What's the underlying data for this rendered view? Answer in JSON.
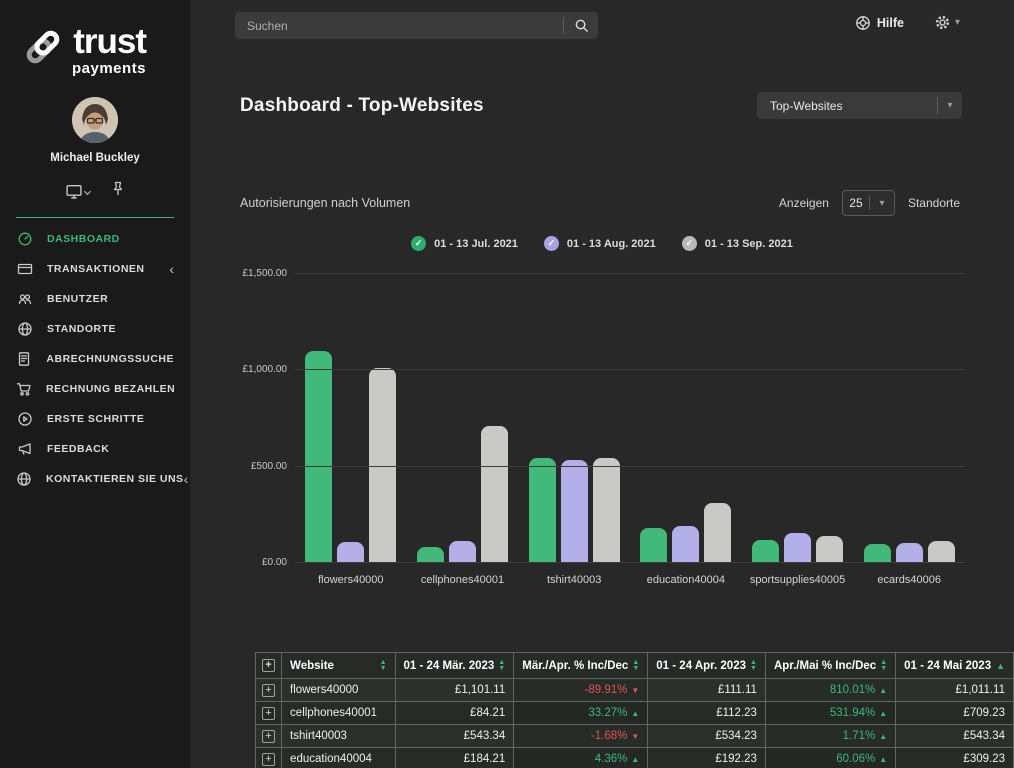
{
  "sidebar": {
    "logo_line1": "trust",
    "logo_line2": "payments",
    "user_name": "Michael Buckley",
    "items": [
      {
        "label": "DASHBOARD",
        "active": true
      },
      {
        "label": "TRANSAKTIONEN",
        "chevron": true
      },
      {
        "label": "BENUTZER"
      },
      {
        "label": "STANDORTE"
      },
      {
        "label": "ABRECHNUNGSSUCHE"
      },
      {
        "label": "RECHNUNG BEZAHLEN"
      },
      {
        "label": "ERSTE SCHRITTE"
      },
      {
        "label": "FEEDBACK"
      },
      {
        "label": "KONTAKTIEREN SIE UNS",
        "chevron": true
      }
    ]
  },
  "topbar": {
    "search_placeholder": "Suchen",
    "help_label": "Hilfe"
  },
  "page": {
    "title": "Dashboard - Top-Websites",
    "view_select": "Top-Websites"
  },
  "section": {
    "title": "Autorisierungen nach Volumen",
    "show_label": "Anzeigen",
    "show_value": "25",
    "locations_label": "Standorte"
  },
  "legend": [
    {
      "label": "01 - 13 Jul. 2021",
      "color": "#2fad6d"
    },
    {
      "label": "01 - 13 Aug. 2021",
      "color": "#a7a3e2"
    },
    {
      "label": "01 - 13 Sep. 2021",
      "color": "#b9b9b7"
    }
  ],
  "chart_data": {
    "type": "bar",
    "title": "Autorisierungen nach Volumen",
    "categories": [
      "flowers40000",
      "cellphones40001",
      "tshirt40003",
      "education40004",
      "sportsupplies40005",
      "ecards40006"
    ],
    "series": [
      {
        "name": "01 - 13 Jul. 2021",
        "color": "#41b97b",
        "values": [
          1101.11,
          84.21,
          543.34,
          184.21,
          120,
          100
        ]
      },
      {
        "name": "01 - 13 Aug. 2021",
        "color": "#b3afe8",
        "values": [
          111.11,
          112.23,
          534.23,
          192.23,
          155,
          103
        ]
      },
      {
        "name": "01 - 13 Sep. 2021",
        "color": "#c9c9c6",
        "values": [
          1011.11,
          709.23,
          543.34,
          309.23,
          140,
          115
        ]
      }
    ],
    "ylim": [
      0,
      1500
    ],
    "yticks": [
      {
        "label": "£1,500.00",
        "value": 1500
      },
      {
        "label": "£1,000.00",
        "value": 1000
      },
      {
        "label": "£500.00",
        "value": 500
      },
      {
        "label": "£0.00",
        "value": 0
      }
    ],
    "grid": true,
    "legend_position": "top",
    "currency": "GBP"
  },
  "table": {
    "columns": [
      {
        "label": "Website",
        "sort": "both"
      },
      {
        "label": "01 - 24 Mär. 2023",
        "sort": "both"
      },
      {
        "label": "Mär./Apr. % Inc/Dec",
        "sort": "both"
      },
      {
        "label": "01 - 24 Apr. 2023",
        "sort": "both"
      },
      {
        "label": "Apr./Mai % Inc/Dec",
        "sort": "both"
      },
      {
        "label": "01 - 24 Mai 2023",
        "sort": "up"
      }
    ],
    "rows": [
      {
        "website": "flowers40000",
        "cells": [
          {
            "text": "£1,101.11"
          },
          {
            "text": "-89.91%",
            "trend": "down"
          },
          {
            "text": "£111.11"
          },
          {
            "text": "810.01%",
            "trend": "up"
          },
          {
            "text": "£1,011.11"
          }
        ]
      },
      {
        "website": "cellphones40001",
        "cells": [
          {
            "text": "£84.21"
          },
          {
            "text": "33.27%",
            "trend": "up"
          },
          {
            "text": "£112.23"
          },
          {
            "text": "531.94%",
            "trend": "up"
          },
          {
            "text": "£709.23"
          }
        ]
      },
      {
        "website": "tshirt40003",
        "cells": [
          {
            "text": "£543.34"
          },
          {
            "text": "-1.68%",
            "trend": "down"
          },
          {
            "text": "£534.23"
          },
          {
            "text": "1.71%",
            "trend": "up"
          },
          {
            "text": "£543.34"
          }
        ]
      },
      {
        "website": "education40004",
        "cells": [
          {
            "text": "£184.21"
          },
          {
            "text": "4.36%",
            "trend": "up"
          },
          {
            "text": "£192.23"
          },
          {
            "text": "60.06%",
            "trend": "up"
          },
          {
            "text": "£309.23"
          }
        ]
      }
    ]
  },
  "colors": {
    "accent_green": "#3cb878",
    "bar_green": "#41b97b",
    "bar_purple": "#b3afe8",
    "bar_gray": "#c9c9c6",
    "negative_red": "#e05555",
    "sidebar_bg": "#1a1a1a",
    "main_bg": "#282828"
  }
}
